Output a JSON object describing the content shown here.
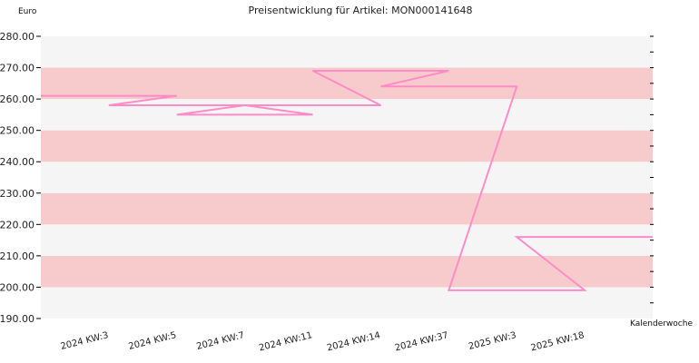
{
  "chart_data": {
    "type": "line",
    "step": true,
    "title": "Preisentwicklung für Artikel: MON000141648",
    "ylabel": "Euro",
    "xlabel": "Kalenderwoche",
    "categories": [
      "2024 KW:3",
      "2024 KW:5",
      "2024 KW:7",
      "2024 KW:11",
      "2024 KW:14",
      "2024 KW:37",
      "2025 KW:3",
      "2025 KW:18"
    ],
    "series": [
      {
        "values": [
          261.0,
          258.0,
          255.0,
          258.0,
          269.0,
          264.0,
          199.0,
          216.0
        ]
      }
    ],
    "ylim": [
      190,
      280
    ],
    "ytick_labels": [
      "190.00",
      "200.00",
      "210.00",
      "220.00",
      "230.00",
      "240.00",
      "250.00",
      "260.00",
      "270.00",
      "280.00"
    ],
    "grid": "alternating horizontal bands",
    "colors": {
      "line": "#ff8cc6",
      "band_a": "#f7cbcb",
      "band_b": "#f5f5f5"
    }
  }
}
